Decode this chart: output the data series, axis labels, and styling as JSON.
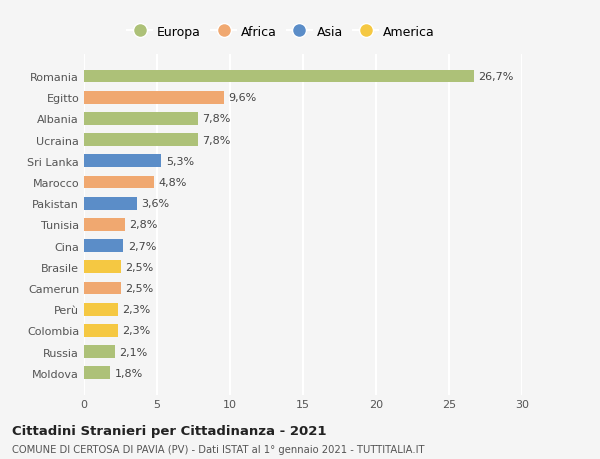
{
  "categories": [
    "Moldova",
    "Russia",
    "Colombia",
    "Perù",
    "Camerun",
    "Brasile",
    "Cina",
    "Tunisia",
    "Pakistan",
    "Marocco",
    "Sri Lanka",
    "Ucraina",
    "Albania",
    "Egitto",
    "Romania"
  ],
  "values": [
    1.8,
    2.1,
    2.3,
    2.3,
    2.5,
    2.5,
    2.7,
    2.8,
    3.6,
    4.8,
    5.3,
    7.8,
    7.8,
    9.6,
    26.7
  ],
  "labels": [
    "1,8%",
    "2,1%",
    "2,3%",
    "2,3%",
    "2,5%",
    "2,5%",
    "2,7%",
    "2,8%",
    "3,6%",
    "4,8%",
    "5,3%",
    "7,8%",
    "7,8%",
    "9,6%",
    "26,7%"
  ],
  "colors": [
    "#adc178",
    "#adc178",
    "#f5c842",
    "#f5c842",
    "#f0a870",
    "#f5c842",
    "#5b8dc8",
    "#f0a870",
    "#5b8dc8",
    "#f0a870",
    "#5b8dc8",
    "#adc178",
    "#adc178",
    "#f0a870",
    "#adc178"
  ],
  "legend_labels": [
    "Europa",
    "Africa",
    "Asia",
    "America"
  ],
  "legend_colors": [
    "#adc178",
    "#f0a870",
    "#5b8dc8",
    "#f5c842"
  ],
  "xlim": [
    0,
    30
  ],
  "xticks": [
    0,
    5,
    10,
    15,
    20,
    25,
    30
  ],
  "title": "Cittadini Stranieri per Cittadinanza - 2021",
  "subtitle": "COMUNE DI CERTOSA DI PAVIA (PV) - Dati ISTAT al 1° gennaio 2021 - TUTTITALIA.IT",
  "bg_color": "#f5f5f5",
  "grid_color": "#ffffff",
  "bar_height": 0.6,
  "label_fontsize": 8,
  "ytick_fontsize": 8,
  "xtick_fontsize": 8
}
